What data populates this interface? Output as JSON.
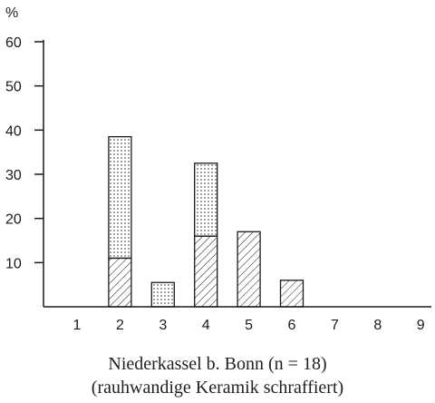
{
  "chart_data": {
    "type": "bar",
    "stacked": true,
    "unit_label": "%",
    "categories": [
      "1",
      "2",
      "3",
      "4",
      "5",
      "6",
      "7",
      "8",
      "9"
    ],
    "series": [
      {
        "values": [
          0,
          11,
          0,
          16,
          17,
          6,
          0,
          0,
          0
        ],
        "pattern": "hatched"
      },
      {
        "values": [
          0,
          27.5,
          5.5,
          16.5,
          0,
          0,
          0,
          0,
          0
        ],
        "pattern": "dotted"
      }
    ],
    "ylim": [
      0,
      60
    ],
    "yticks": [
      "10",
      "20",
      "30",
      "40",
      "50",
      "60"
    ],
    "grid": false,
    "caption_line1": "Niederkassel b. Bonn (n = 18)",
    "caption_line2": "(rauhwandige Keramik schraffiert)",
    "colors": {
      "ink": "#1a1a1a"
    }
  }
}
